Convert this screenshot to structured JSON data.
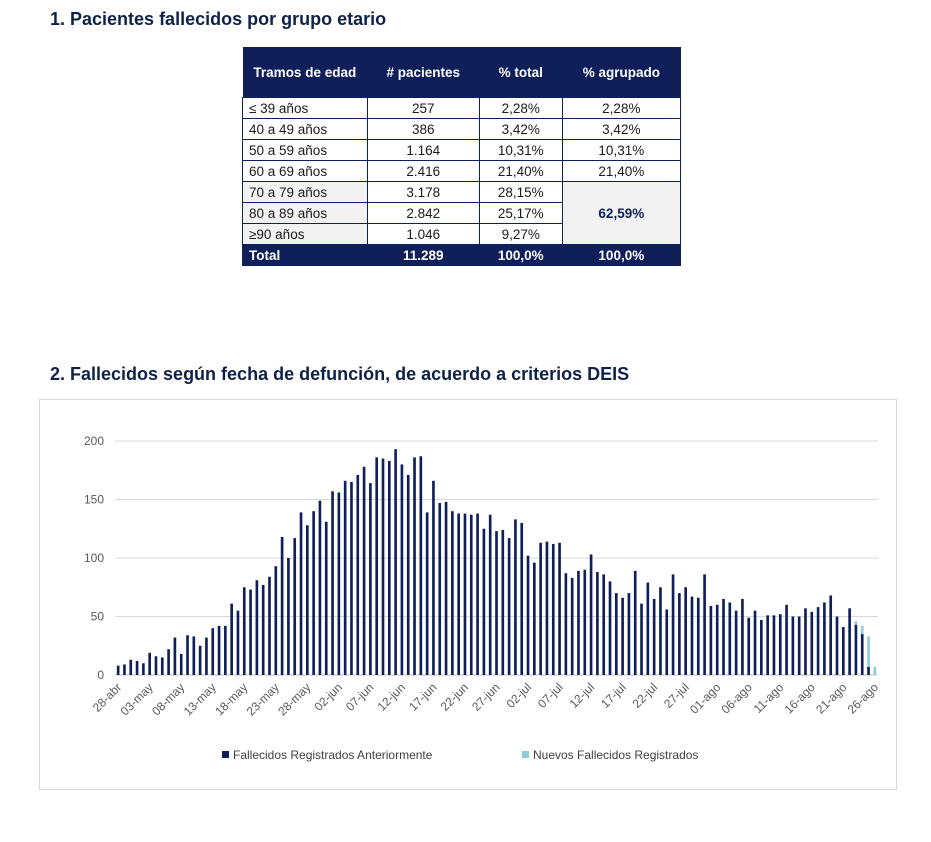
{
  "section1": {
    "title": "1.  Pacientes fallecidos por grupo etario"
  },
  "table": {
    "headers": [
      "Tramos de edad",
      "# pacientes",
      "% total",
      "% agrupado"
    ],
    "rows": [
      {
        "range": "≤ 39 años",
        "patients": "257",
        "pct_total": "2,28%",
        "pct_grouped": "2,28%"
      },
      {
        "range": "40 a 49 años",
        "patients": "386",
        "pct_total": "3,42%",
        "pct_grouped": "3,42%"
      },
      {
        "range": "50 a 59 años",
        "patients": "1.164",
        "pct_total": "10,31%",
        "pct_grouped": "10,31%"
      },
      {
        "range": "60 a 69 años",
        "patients": "2.416",
        "pct_total": "21,40%",
        "pct_grouped": "21,40%"
      },
      {
        "range": "70 a 79 años",
        "patients": "3.178",
        "pct_total": "28,15%"
      },
      {
        "range": "80 a 89 años",
        "patients": "2.842",
        "pct_total": "25,17%"
      },
      {
        "range": "≥90 años",
        "patients": "1.046",
        "pct_total": "9,27%"
      }
    ],
    "grouped_merged": "62,59%",
    "total": {
      "label": "Total",
      "patients": "11.289",
      "pct_total": "100,0%",
      "pct_grouped": "100,0%"
    }
  },
  "section2": {
    "title": "2.  Fallecidos según fecha de defunción, de acuerdo a criterios DEIS"
  },
  "chart_data": {
    "type": "bar",
    "stacked": true,
    "grid": true,
    "legend_position": "bottom",
    "ylim": [
      0,
      200
    ],
    "yticks": [
      0,
      50,
      100,
      150,
      200
    ],
    "xtick_labels": [
      "28-abr",
      "03-may",
      "08-may",
      "13-may",
      "18-may",
      "23-may",
      "28-may",
      "02-jun",
      "07-jun",
      "12-jun",
      "17-jun",
      "22-jun",
      "27-jun",
      "02-jul",
      "07-jul",
      "12-jul",
      "17-jul",
      "22-jul",
      "27-jul",
      "01-ago",
      "06-ago",
      "11-ago",
      "16-ago",
      "21-ago",
      "26-ago"
    ],
    "series": [
      {
        "name": "Fallecidos Registrados Anteriormente",
        "color": "#0e1f5a",
        "values": [
          8,
          9,
          13,
          12,
          10,
          19,
          16,
          15,
          22,
          32,
          18,
          34,
          33,
          25,
          32,
          40,
          42,
          42,
          61,
          55,
          75,
          73,
          81,
          77,
          84,
          93,
          118,
          100,
          117,
          139,
          128,
          140,
          149,
          131,
          157,
          156,
          166,
          165,
          171,
          178,
          164,
          186,
          185,
          183,
          193,
          180,
          171,
          186,
          187,
          139,
          166,
          147,
          148,
          140,
          138,
          138,
          137,
          138,
          125,
          137,
          123,
          124,
          117,
          133,
          130,
          102,
          96,
          113,
          114,
          112,
          113,
          87,
          83,
          89,
          90,
          103,
          88,
          86,
          80,
          70,
          66,
          70,
          89,
          61,
          79,
          65,
          75,
          56,
          86,
          70,
          75,
          67,
          66,
          86,
          59,
          60,
          65,
          62,
          55,
          65,
          49,
          55,
          47,
          51,
          51,
          52,
          60,
          50,
          50,
          57,
          54,
          58,
          62,
          68,
          50,
          41,
          57,
          43,
          35,
          7,
          0
        ]
      },
      {
        "name": "Nuevos Fallecidos Registrados",
        "color": "#8ecbdc",
        "values": [
          0,
          0,
          0,
          0,
          0,
          0,
          0,
          0,
          0,
          0,
          0,
          0,
          0,
          0,
          0,
          0,
          0,
          0,
          0,
          0,
          0,
          0,
          0,
          0,
          0,
          0,
          0,
          0,
          0,
          0,
          0,
          0,
          0,
          0,
          0,
          0,
          0,
          0,
          0,
          0,
          0,
          0,
          0,
          0,
          0,
          0,
          0,
          0,
          0,
          0,
          0,
          0,
          0,
          0,
          0,
          0,
          0,
          0,
          0,
          0,
          0,
          0,
          0,
          0,
          0,
          0,
          0,
          0,
          0,
          0,
          0,
          0,
          0,
          0,
          0,
          0,
          0,
          0,
          0,
          0,
          0,
          0,
          0,
          0,
          0,
          0,
          0,
          0,
          0,
          0,
          0,
          0,
          0,
          0,
          0,
          0,
          0,
          0,
          0,
          0,
          0,
          0,
          0,
          0,
          0,
          0,
          0,
          0,
          0,
          0,
          0,
          0,
          0,
          0,
          0,
          0,
          0,
          3,
          7,
          26,
          7
        ]
      }
    ]
  }
}
